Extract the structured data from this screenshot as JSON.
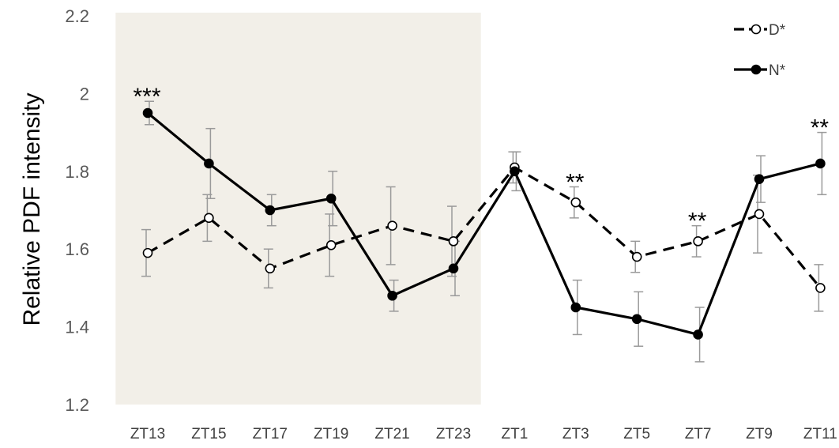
{
  "chart_data": {
    "type": "line",
    "title": "",
    "xlabel": "",
    "ylabel": "Relative PDF intensity",
    "ylim": [
      1.2,
      2.2
    ],
    "yticks": [
      "1.2",
      "1.4",
      "1.6",
      "1.8",
      "2",
      "2.2"
    ],
    "categories": [
      "ZT13",
      "ZT15",
      "ZT17",
      "ZT19",
      "ZT21",
      "ZT23",
      "ZT1",
      "ZT3",
      "ZT5",
      "ZT7",
      "ZT9",
      "ZT11"
    ],
    "shaded_region": {
      "from": "ZT13",
      "to": "ZT23",
      "color": "#f2efe8"
    },
    "grid": false,
    "legend_position": "top-right",
    "series": [
      {
        "name": "D*",
        "style": "dashed",
        "marker": "open-circle",
        "color": "#000000",
        "values": [
          1.59,
          1.68,
          1.55,
          1.61,
          1.66,
          1.62,
          1.81,
          1.72,
          1.58,
          1.62,
          1.69,
          1.5
        ],
        "errors": [
          0.06,
          0.06,
          0.05,
          0.08,
          0.1,
          0.09,
          0.04,
          0.04,
          0.04,
          0.04,
          0.1,
          0.06
        ]
      },
      {
        "name": "N*",
        "style": "solid",
        "marker": "filled-circle",
        "color": "#000000",
        "values": [
          1.95,
          1.82,
          1.7,
          1.73,
          1.48,
          1.55,
          1.8,
          1.45,
          1.42,
          1.38,
          1.78,
          1.82
        ],
        "errors": [
          0.03,
          0.09,
          0.04,
          0.07,
          0.04,
          0.07,
          0.05,
          0.07,
          0.07,
          0.07,
          0.06,
          0.08
        ]
      }
    ],
    "annotations": [
      {
        "category": "ZT13",
        "text": "***"
      },
      {
        "category": "ZT3",
        "text": "**"
      },
      {
        "category": "ZT7",
        "text": "**"
      },
      {
        "category": "ZT11",
        "text": "**"
      }
    ]
  }
}
